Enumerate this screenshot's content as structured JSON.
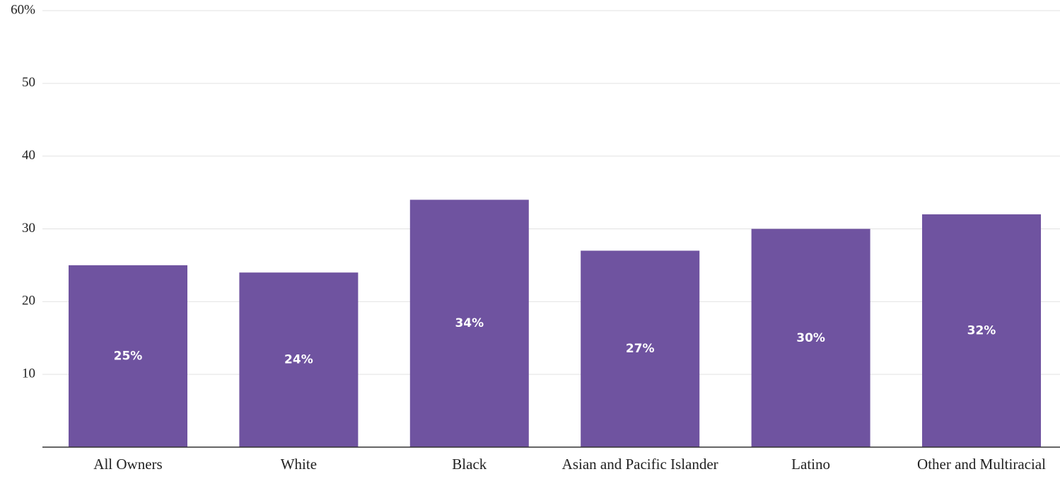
{
  "chart_data": {
    "type": "bar",
    "categories": [
      "All Owners",
      "White",
      "Black",
      "Asian and Pacific Islander",
      "Latino",
      "Other and Multiracial"
    ],
    "values": [
      25,
      24,
      34,
      27,
      30,
      32
    ],
    "value_labels": [
      "25%",
      "24%",
      "34%",
      "27%",
      "30%",
      "32%"
    ],
    "color": "#6f53a0",
    "ylim": [
      0,
      60
    ],
    "yticks": [
      10,
      20,
      30,
      40,
      50,
      {
        "value": 60,
        "label": "60%"
      }
    ],
    "grid": true
  }
}
